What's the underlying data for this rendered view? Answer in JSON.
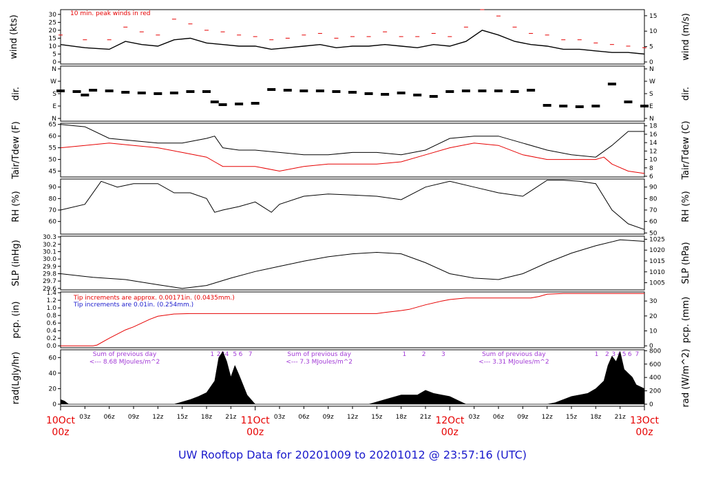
{
  "chart_data": {
    "type": "line",
    "title": "UW Rooftop Data for 20201009  to  20201012 @ 23:57:16  (UTC)",
    "x_range_hours": [
      0,
      72
    ],
    "x_ticks": [
      "03z",
      "06z",
      "09z",
      "12z",
      "15z",
      "18z",
      "21z",
      "03z",
      "06z",
      "09z",
      "12z",
      "15z",
      "18z",
      "21z",
      "03z",
      "06z",
      "09z",
      "12z",
      "15z",
      "18z",
      "21z"
    ],
    "x_tick_hours": [
      3,
      6,
      9,
      12,
      15,
      18,
      21,
      27,
      30,
      33,
      36,
      39,
      42,
      45,
      51,
      54,
      57,
      60,
      63,
      66,
      69
    ],
    "day_labels": [
      {
        "day": "10Oct",
        "time": "00z",
        "hour": 0
      },
      {
        "day": "11Oct",
        "time": "00z",
        "hour": 24
      },
      {
        "day": "12Oct",
        "time": "00z",
        "hour": 48
      },
      {
        "day": "13Oct",
        "time": "00z",
        "hour": 72
      }
    ],
    "panels": {
      "wind": {
        "ylabel": "wind (kts)",
        "ylabel_right": "wind (m/s)",
        "ylim": [
          0,
          33
        ],
        "yticks": [
          0,
          5,
          10,
          15,
          20,
          25,
          30
        ],
        "yticks_right": [
          0,
          5,
          10,
          15
        ],
        "annotation": "10 min. peak winds in red",
        "series": [
          {
            "role": "mean",
            "color": "#000000",
            "hours": [
              0,
              3,
              6,
              8,
              10,
              12,
              14,
              16,
              18,
              20,
              22,
              24,
              26,
              28,
              30,
              32,
              34,
              36,
              38,
              40,
              42,
              44,
              46,
              48,
              50,
              52,
              54,
              56,
              58,
              60,
              62,
              64,
              66,
              68,
              70,
              72
            ],
            "values": [
              11,
              9,
              8,
              13,
              11,
              10,
              14,
              15,
              12,
              11,
              10,
              10,
              8,
              9,
              10,
              11,
              9,
              10,
              10,
              11,
              10,
              9,
              11,
              10,
              13,
              20,
              17,
              13,
              11,
              10,
              8,
              8,
              7,
              6,
              6,
              5
            ]
          },
          {
            "role": "peak",
            "color": "#e60000",
            "hours": [
              0,
              3,
              6,
              8,
              10,
              12,
              14,
              16,
              18,
              20,
              22,
              24,
              26,
              28,
              30,
              32,
              34,
              36,
              38,
              40,
              42,
              44,
              46,
              48,
              50,
              52,
              54,
              56,
              58,
              60,
              62,
              64,
              66,
              68,
              70,
              72
            ],
            "values": [
              17,
              14,
              14,
              22,
              19,
              17,
              27,
              24,
              20,
              19,
              17,
              16,
              14,
              15,
              17,
              18,
              15,
              16,
              16,
              19,
              16,
              16,
              18,
              16,
              22,
              33,
              29,
              22,
              18,
              17,
              14,
              14,
              12,
              11,
              10,
              9
            ]
          }
        ]
      },
      "dir": {
        "ylabel": "dir.",
        "ylabel_right": "dir.",
        "yticks": [
          "N",
          "E",
          "S",
          "W",
          "N"
        ],
        "series": [
          {
            "color": "#000000",
            "hours": [
              0,
              2,
              3,
              4,
              6,
              8,
              10,
              12,
              14,
              16,
              18,
              19,
              20,
              22,
              24,
              26,
              28,
              30,
              32,
              34,
              36,
              38,
              40,
              42,
              44,
              46,
              48,
              50,
              52,
              54,
              56,
              58,
              60,
              62,
              64,
              66,
              68,
              70,
              72
            ],
            "values": [
              200,
              195,
              170,
              205,
              200,
              190,
              185,
              180,
              185,
              195,
              195,
              120,
              100,
              105,
              110,
              210,
              205,
              200,
              200,
              195,
              190,
              180,
              175,
              185,
              170,
              160,
              195,
              200,
              200,
              200,
              195,
              205,
              95,
              90,
              85,
              90,
              250,
              120,
              90
            ]
          }
        ]
      },
      "temp": {
        "ylabel": "Tair/Tdew (F)",
        "ylabel_right": "Tair/Tdew (C)",
        "ylim": [
          42.5,
          65.5
        ],
        "yticks": [
          45,
          50,
          55,
          60,
          65
        ],
        "yticks_right": [
          6,
          8,
          10,
          12,
          14,
          16,
          18
        ],
        "series": [
          {
            "name": "Tair",
            "color": "#000000",
            "hours": [
              0,
              3,
              6,
              9,
              12,
              15,
              18,
              19,
              20,
              22,
              24,
              27,
              30,
              33,
              36,
              39,
              42,
              45,
              48,
              51,
              54,
              57,
              60,
              63,
              66,
              68,
              70,
              72
            ],
            "values": [
              65,
              64,
              59,
              58,
              57,
              57,
              59,
              60,
              55,
              54,
              54,
              53,
              52,
              52,
              53,
              53,
              52,
              54,
              59,
              60,
              60,
              57,
              54,
              52,
              51,
              56,
              62,
              62
            ]
          },
          {
            "name": "Tdew",
            "color": "#e60000",
            "hours": [
              0,
              3,
              6,
              9,
              12,
              15,
              18,
              19,
              20,
              22,
              24,
              27,
              30,
              33,
              36,
              39,
              42,
              45,
              48,
              51,
              54,
              57,
              60,
              63,
              66,
              67,
              68,
              70,
              72
            ],
            "values": [
              55,
              56,
              57,
              56,
              55,
              53,
              51,
              49,
              47,
              47,
              47,
              45,
              47,
              48,
              48,
              48,
              49,
              52,
              55,
              57,
              56,
              52,
              50,
              50,
              50,
              51,
              48,
              45,
              44
            ]
          }
        ]
      },
      "rh": {
        "ylabel": "RH (%)",
        "ylabel_right": "RH (%)",
        "ylim": [
          49,
          97
        ],
        "yticks": [
          60,
          70,
          80,
          90
        ],
        "yticks_right": [
          50,
          60,
          70,
          80,
          90
        ],
        "series": [
          {
            "color": "#000000",
            "hours": [
              0,
              3,
              5,
              7,
              9,
              12,
              14,
              16,
              18,
              19,
              20,
              22,
              24,
              26,
              27,
              30,
              33,
              36,
              39,
              42,
              45,
              48,
              51,
              54,
              57,
              60,
              62,
              64,
              66,
              68,
              70,
              72
            ],
            "values": [
              70,
              75,
              95,
              90,
              93,
              93,
              85,
              85,
              80,
              68,
              70,
              73,
              77,
              68,
              75,
              82,
              84,
              83,
              82,
              79,
              90,
              95,
              90,
              85,
              82,
              96,
              96,
              95,
              93,
              70,
              58,
              53
            ]
          }
        ]
      },
      "slp": {
        "ylabel": "SLP (inHg)",
        "ylabel_right": "SLP (hPa)",
        "ylim": [
          29.58,
          30.31
        ],
        "yticks": [
          29.6,
          29.7,
          29.8,
          29.9,
          30.0,
          30.1,
          30.2,
          30.3
        ],
        "yticks_right": [
          1005,
          1010,
          1015,
          1020,
          1025
        ],
        "series": [
          {
            "color": "#000000",
            "hours": [
              0,
              4,
              8,
              12,
              15,
              18,
              21,
              24,
              27,
              30,
              33,
              36,
              39,
              42,
              45,
              48,
              51,
              54,
              57,
              60,
              63,
              66,
              69,
              72
            ],
            "values": [
              29.8,
              29.75,
              29.72,
              29.65,
              29.6,
              29.64,
              29.74,
              29.83,
              29.9,
              29.97,
              30.03,
              30.07,
              30.09,
              30.07,
              29.95,
              29.8,
              29.74,
              29.72,
              29.8,
              29.95,
              30.08,
              30.18,
              30.26,
              30.24
            ]
          }
        ]
      },
      "pcp": {
        "ylabel": "pcp. (in)",
        "ylabel_right": "pcp. (mm)",
        "ylim": [
          -0.05,
          1.42
        ],
        "yticks": [
          0.0,
          0.2,
          0.4,
          0.6,
          0.8,
          1.0,
          1.2,
          1.4
        ],
        "yticks_right": [
          0,
          10,
          20,
          30
        ],
        "notes": [
          {
            "text": "Tip increments are approx. 0.00171in. (0.0435mm.)",
            "color": "#e60000"
          },
          {
            "text": "Tip increments are 0.01in. (0.254mm.)",
            "color": "#1a1acc"
          }
        ],
        "series": [
          {
            "color": "#e60000",
            "hours": [
              0,
              4,
              4.5,
              6,
              8,
              9,
              10,
              11,
              12,
              14,
              16,
              24,
              33,
              39,
              40,
              42,
              43,
              45,
              47,
              48,
              50,
              54,
              58,
              59,
              60,
              62,
              66,
              72
            ],
            "values": [
              0,
              0,
              0.02,
              0.2,
              0.42,
              0.5,
              0.6,
              0.7,
              0.78,
              0.84,
              0.85,
              0.85,
              0.85,
              0.85,
              0.88,
              0.93,
              0.96,
              1.08,
              1.18,
              1.22,
              1.26,
              1.26,
              1.26,
              1.3,
              1.36,
              1.38,
              1.38,
              1.38
            ]
          }
        ]
      },
      "rad": {
        "ylabel": "rad(Lgly/hr)",
        "ylabel_right": "rad (W/m^2)",
        "ylim": [
          0,
          70
        ],
        "yticks": [
          0,
          20,
          40,
          60
        ],
        "yticks_right": [
          0,
          200,
          400,
          600,
          800
        ],
        "daily_sums": [
          {
            "line1": "Sum of previous day",
            "line2": "<--- 8.68 MJoules/m^2",
            "hour": 4.5
          },
          {
            "line1": "Sum of previous day",
            "line2": "<--- 7.3 MJoules/m^2",
            "hour": 28.5
          },
          {
            "line1": "Sum of previous day",
            "line2": "<--- 3.31 MJoules/m^2",
            "hour": 52.5
          }
        ],
        "markers": [
          {
            "label": "1",
            "hour": 18.7
          },
          {
            "label": "2",
            "hour": 19.5
          },
          {
            "label": "3",
            "hour": 20
          },
          {
            "label": "4",
            "hour": 20.5
          },
          {
            "label": "5",
            "hour": 21.5
          },
          {
            "label": "6",
            "hour": 22.2
          },
          {
            "label": "7",
            "hour": 23.4
          },
          {
            "label": "1",
            "hour": 42.4
          },
          {
            "label": "2",
            "hour": 44.8
          },
          {
            "label": "3",
            "hour": 47.2
          },
          {
            "label": "1",
            "hour": 66.1
          },
          {
            "label": "2",
            "hour": 67.4
          },
          {
            "label": "3",
            "hour": 68.2
          },
          {
            "label": "4",
            "hour": 68.9
          },
          {
            "label": "5",
            "hour": 69.5
          },
          {
            "label": "6",
            "hour": 70.2
          },
          {
            "label": "7",
            "hour": 71.1
          }
        ],
        "series": [
          {
            "color": "#000000",
            "hours": [
              0,
              0.5,
              1,
              12,
              14,
              15,
              16,
              17,
              18,
              19,
              19.5,
              20,
              20.5,
              21,
              21.5,
              22,
              22.5,
              23,
              24,
              36,
              38,
              40,
              42,
              44,
              45,
              46,
              47,
              48,
              49,
              50,
              60,
              61,
              62,
              63,
              64,
              65,
              66,
              67,
              67.5,
              68,
              68.5,
              69,
              69.5,
              70,
              70.5,
              71,
              72
            ],
            "values": [
              6,
              4,
              0,
              0,
              0,
              3,
              6,
              10,
              15,
              30,
              60,
              68,
              55,
              35,
              50,
              38,
              25,
              12,
              0,
              0,
              0,
              6,
              12,
              12,
              18,
              14,
              12,
              10,
              5,
              0,
              0,
              2,
              6,
              10,
              12,
              14,
              20,
              30,
              50,
              62,
              55,
              68,
              45,
              40,
              35,
              25,
              20
            ]
          }
        ]
      }
    }
  }
}
